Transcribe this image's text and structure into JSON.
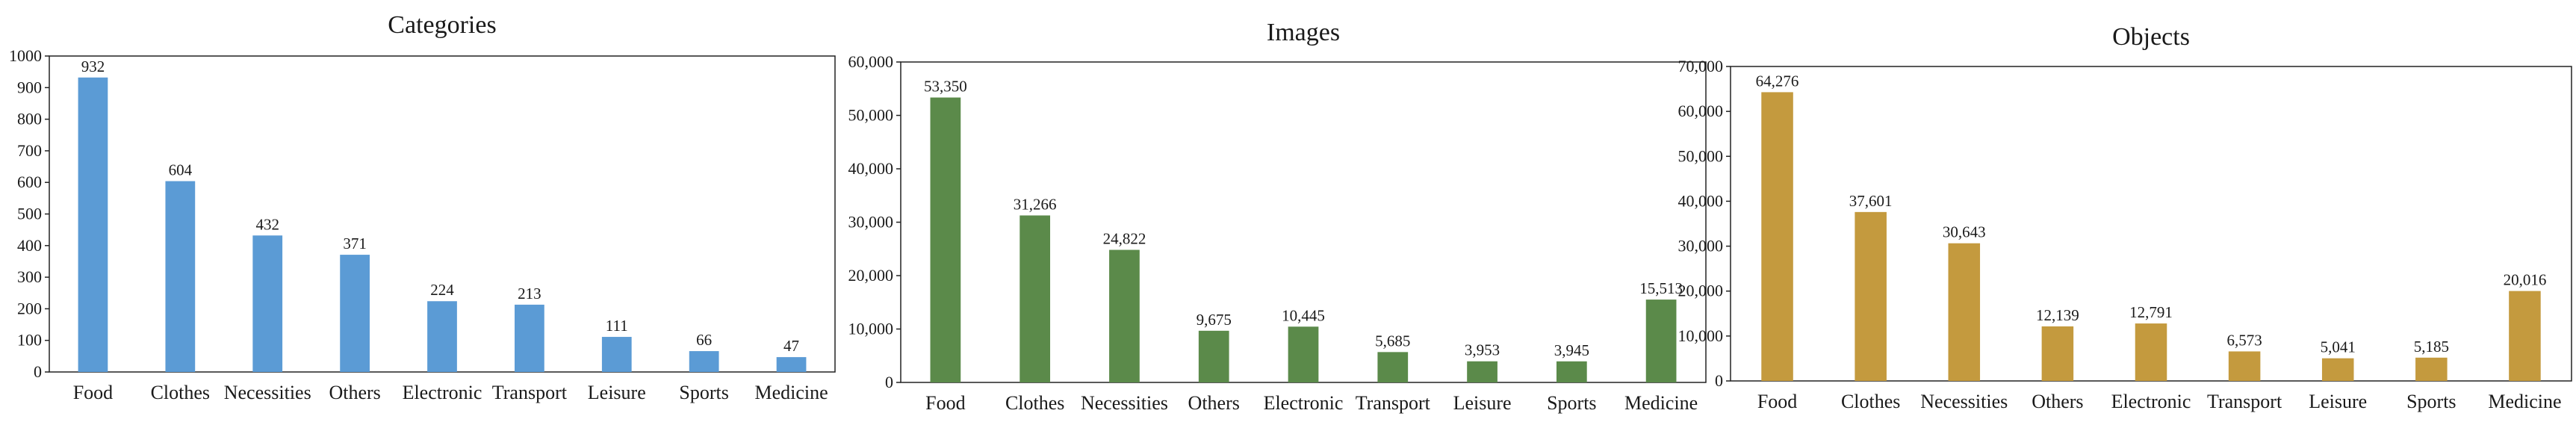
{
  "chart_data": [
    {
      "type": "bar",
      "title": "Categories",
      "categories": [
        "Food",
        "Clothes",
        "Necessities",
        "Others",
        "Electronic",
        "Transport",
        "Leisure",
        "Sports",
        "Medicine"
      ],
      "values": [
        932,
        604,
        432,
        371,
        224,
        213,
        111,
        66,
        47
      ],
      "data_labels": [
        "932",
        "604",
        "432",
        "371",
        "224",
        "213",
        "111",
        "66",
        "47"
      ],
      "ylim": [
        0,
        1000
      ],
      "yticks": [
        0,
        100,
        200,
        300,
        400,
        500,
        600,
        700,
        800,
        900,
        1000
      ],
      "ytick_labels": [
        "0",
        "100",
        "200",
        "300",
        "400",
        "500",
        "600",
        "700",
        "800",
        "900",
        "1000"
      ],
      "color": "#5b9bd5",
      "grid": false
    },
    {
      "type": "bar",
      "title": "Images",
      "categories": [
        "Food",
        "Clothes",
        "Necessities",
        "Others",
        "Electronic",
        "Transport",
        "Leisure",
        "Sports",
        "Medicine"
      ],
      "values": [
        53350,
        31266,
        24822,
        9675,
        10445,
        5685,
        3953,
        3945,
        15513
      ],
      "data_labels": [
        "53,350",
        "31,266",
        "24,822",
        "9,675",
        "10,445",
        "5,685",
        "3,953",
        "3,945",
        "15,513"
      ],
      "ylim": [
        0,
        60000
      ],
      "yticks": [
        0,
        10000,
        20000,
        30000,
        40000,
        50000,
        60000
      ],
      "ytick_labels": [
        "0",
        "10,000",
        "20,000",
        "30,000",
        "40,000",
        "50,000",
        "60,000"
      ],
      "color": "#5b8a4a",
      "grid": false
    },
    {
      "type": "bar",
      "title": "Objects",
      "categories": [
        "Food",
        "Clothes",
        "Necessities",
        "Others",
        "Electronic",
        "Transport",
        "Leisure",
        "Sports",
        "Medicine"
      ],
      "values": [
        64276,
        37601,
        30643,
        12139,
        12791,
        6573,
        5041,
        5185,
        20016
      ],
      "data_labels": [
        "64,276",
        "37,601",
        "30,643",
        "12,139",
        "12,791",
        "6,573",
        "5,041",
        "5,185",
        "20,016"
      ],
      "ylim": [
        0,
        70000
      ],
      "yticks": [
        0,
        10000,
        20000,
        30000,
        40000,
        50000,
        60000,
        70000
      ],
      "ytick_labels": [
        "0",
        "10,000",
        "20,000",
        "30,000",
        "40,000",
        "50,000",
        "60,000",
        "70,000"
      ],
      "color": "#c49a3e",
      "grid": false
    }
  ]
}
